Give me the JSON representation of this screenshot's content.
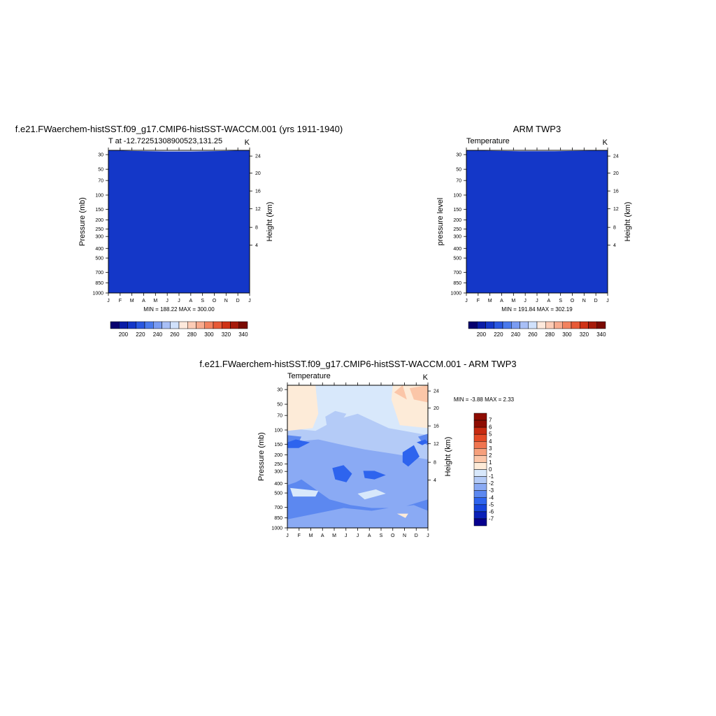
{
  "colors": {
    "palette": [
      "#08006e",
      "#0a1ca6",
      "#1437c8",
      "#2a58e0",
      "#4a7aec",
      "#7a9cf2",
      "#a8bff6",
      "#d0e1fb",
      "#fde9dc",
      "#fcccb6",
      "#f8ab8e",
      "#f2825f",
      "#e75a37",
      "#cf3316",
      "#a61b0b",
      "#7a0a03"
    ],
    "diff_palette": [
      "#06008e",
      "#0a20b8",
      "#1644dc",
      "#2e64ee",
      "#5c88f0",
      "#8aaaf4",
      "#b4cbf7",
      "#d8e8fb",
      "#fdebd8",
      "#fbc6a8",
      "#f6a07c",
      "#f07550",
      "#e44a26",
      "#c72a10",
      "#8e0c02"
    ]
  },
  "chart_data": [
    {
      "type": "heatmap",
      "title": "f.e21.FWaerchem-histSST.f09_g17.CMIP6-histSST-WACCM.001 (yrs 1911-1940)",
      "subtitle_left": "T at -12.72251308900523,131.25",
      "subtitle_right": "K",
      "ylabel": "Pressure (mb)",
      "y2label": "Height (km)",
      "x_ticks": [
        "J",
        "F",
        "M",
        "A",
        "M",
        "J",
        "J",
        "A",
        "S",
        "O",
        "N",
        "D",
        "J"
      ],
      "y_ticks": [
        "30",
        "50",
        "70",
        "100",
        "150",
        "200",
        "250",
        "300",
        "400",
        "500",
        "700",
        "850",
        "1000"
      ],
      "y2_ticks": [
        "24",
        "20",
        "16",
        "12",
        "8",
        "4"
      ],
      "stats": "MIN = 188.22  MAX = 300.00",
      "colorbar_labels": [
        "200",
        "220",
        "240",
        "260",
        "280",
        "300",
        "320",
        "340"
      ]
    },
    {
      "type": "heatmap",
      "title": "ARM TWP3",
      "subtitle_left": "Temperature",
      "subtitle_right": "K",
      "ylabel": "pressure level",
      "y2label": "Height (km)",
      "x_ticks": [
        "J",
        "F",
        "M",
        "A",
        "M",
        "J",
        "J",
        "A",
        "S",
        "O",
        "N",
        "D",
        "J"
      ],
      "y_ticks": [
        "30",
        "50",
        "70",
        "100",
        "150",
        "200",
        "250",
        "300",
        "400",
        "500",
        "700",
        "850",
        "1000"
      ],
      "y2_ticks": [
        "24",
        "20",
        "16",
        "12",
        "8",
        "4"
      ],
      "stats": "MIN = 191.84  MAX = 302.19",
      "colorbar_labels": [
        "200",
        "220",
        "240",
        "260",
        "280",
        "300",
        "320",
        "340"
      ]
    },
    {
      "type": "heatmap",
      "title": "f.e21.FWaerchem-histSST.f09_g17.CMIP6-histSST-WACCM.001 - ARM TWP3",
      "subtitle_left": "Temperature",
      "subtitle_right": "K",
      "ylabel": "Pressure (mb)",
      "y2label": "Height (km)",
      "x_ticks": [
        "J",
        "F",
        "M",
        "A",
        "M",
        "J",
        "J",
        "A",
        "S",
        "O",
        "N",
        "D",
        "J"
      ],
      "y_ticks": [
        "30",
        "50",
        "70",
        "100",
        "150",
        "200",
        "250",
        "300",
        "400",
        "500",
        "700",
        "850",
        "1000"
      ],
      "y2_ticks": [
        "24",
        "20",
        "16",
        "12",
        "8",
        "4"
      ],
      "stats": "MIN =  -3.88 MAX =   2.33",
      "colorbar_labels": [
        "7",
        "6",
        "5",
        "4",
        "3",
        "2",
        "1",
        "0",
        "-1",
        "-2",
        "-3",
        "-4",
        "-5",
        "-6",
        "-7"
      ]
    }
  ]
}
